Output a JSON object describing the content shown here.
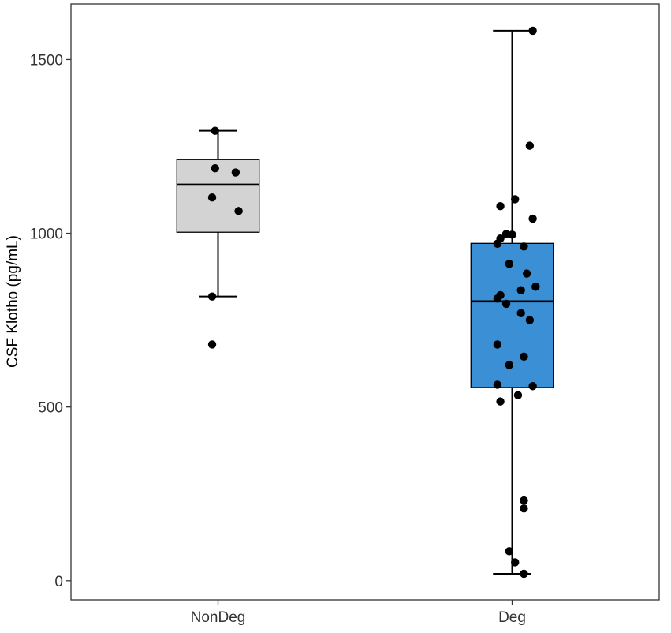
{
  "chart_data": {
    "type": "box",
    "title": "",
    "xlabel": "",
    "ylabel": "CSF Klotho (pg/mL)",
    "ylim": [
      -55,
      1660
    ],
    "yticks": [
      0,
      500,
      1000,
      1500
    ],
    "grid": false,
    "legend": "none",
    "categories": [
      "NonDeg",
      "Deg"
    ],
    "boxes": [
      {
        "category": "NonDeg",
        "whisker_low": 818,
        "q1": 1003,
        "median": 1140,
        "q3": 1212,
        "whisker_high": 1295,
        "fill": "#d3d3d3",
        "points": [
          {
            "dx": -0.01,
            "y": 1295
          },
          {
            "dx": -0.01,
            "y": 1187
          },
          {
            "dx": 0.06,
            "y": 1175
          },
          {
            "dx": -0.02,
            "y": 1103
          },
          {
            "dx": 0.07,
            "y": 1064
          },
          {
            "dx": -0.02,
            "y": 818
          },
          {
            "dx": -0.02,
            "y": 680
          }
        ]
      },
      {
        "category": "Deg",
        "whisker_low": 20,
        "q1": 556,
        "median": 804,
        "q3": 971,
        "whisker_high": 1583,
        "fill": "#3a8fd5",
        "points": [
          {
            "dx": 0.07,
            "y": 1583
          },
          {
            "dx": 0.06,
            "y": 1252
          },
          {
            "dx": 0.01,
            "y": 1098
          },
          {
            "dx": -0.04,
            "y": 1078
          },
          {
            "dx": 0.07,
            "y": 1042
          },
          {
            "dx": -0.02,
            "y": 998
          },
          {
            "dx": 0.0,
            "y": 996
          },
          {
            "dx": -0.04,
            "y": 985
          },
          {
            "dx": -0.05,
            "y": 970
          },
          {
            "dx": 0.04,
            "y": 962
          },
          {
            "dx": -0.01,
            "y": 912
          },
          {
            "dx": 0.05,
            "y": 884
          },
          {
            "dx": 0.08,
            "y": 846
          },
          {
            "dx": 0.03,
            "y": 836
          },
          {
            "dx": -0.04,
            "y": 822
          },
          {
            "dx": -0.05,
            "y": 812
          },
          {
            "dx": -0.02,
            "y": 797
          },
          {
            "dx": 0.03,
            "y": 770
          },
          {
            "dx": 0.06,
            "y": 750
          },
          {
            "dx": -0.05,
            "y": 680
          },
          {
            "dx": 0.04,
            "y": 645
          },
          {
            "dx": -0.01,
            "y": 621
          },
          {
            "dx": -0.05,
            "y": 564
          },
          {
            "dx": 0.07,
            "y": 560
          },
          {
            "dx": 0.02,
            "y": 534
          },
          {
            "dx": -0.04,
            "y": 516
          },
          {
            "dx": 0.04,
            "y": 231
          },
          {
            "dx": 0.04,
            "y": 208
          },
          {
            "dx": -0.01,
            "y": 85
          },
          {
            "dx": 0.01,
            "y": 53
          },
          {
            "dx": 0.04,
            "y": 20
          }
        ]
      }
    ]
  }
}
